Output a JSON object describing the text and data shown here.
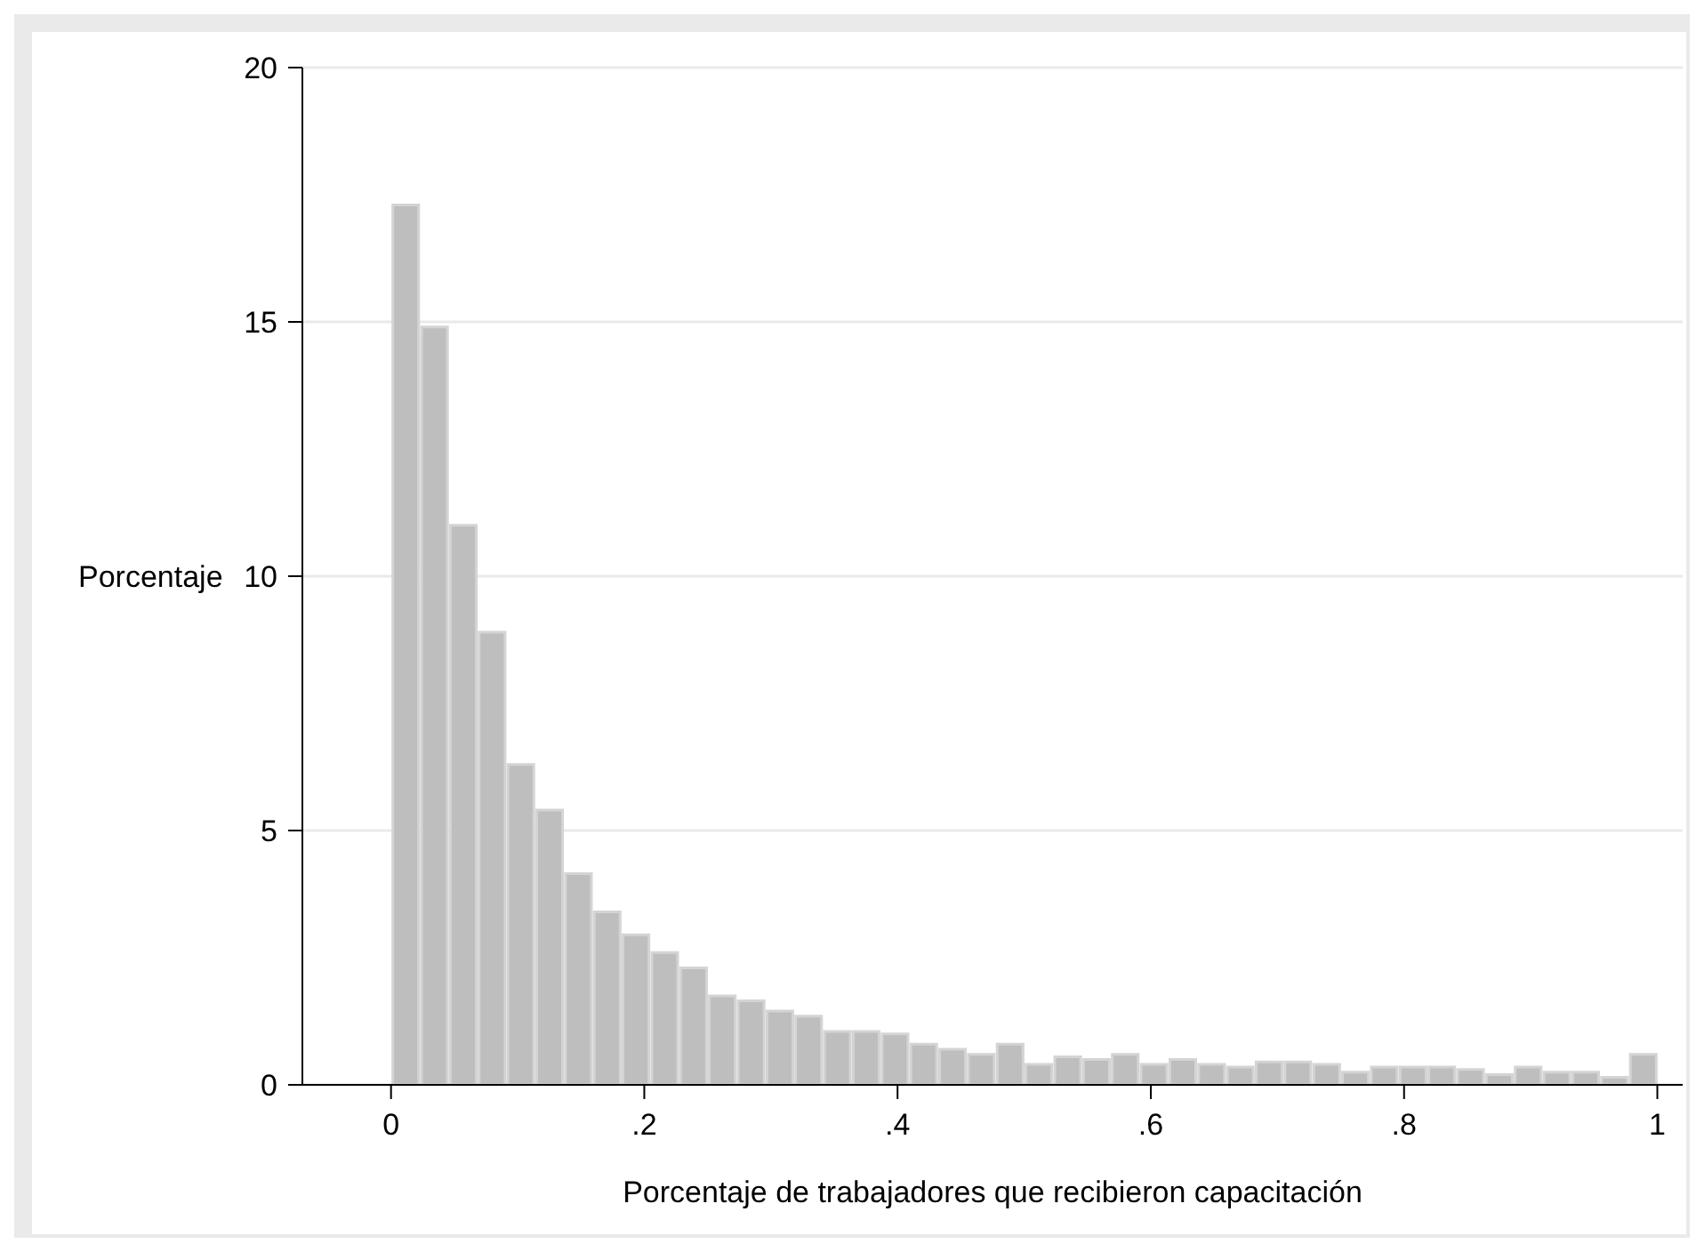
{
  "chart_data": {
    "type": "histogram",
    "xlabel": "Porcentaje de trabajadores que recibieron capacitación",
    "ylabel": "Porcentaje",
    "bins": [
      0,
      0.0227,
      0.0455,
      0.0682,
      0.0909,
      0.1136,
      0.1364,
      0.1591,
      0.1818,
      0.2045,
      0.2273,
      0.25,
      0.2727,
      0.2955,
      0.3182,
      0.3409,
      0.3636,
      0.3864,
      0.4091,
      0.4318,
      0.4545,
      0.4773,
      0.5,
      0.5227,
      0.5455,
      0.5682,
      0.5909,
      0.6136,
      0.6364,
      0.6591,
      0.6818,
      0.7045,
      0.7273,
      0.75,
      0.7727,
      0.7955,
      0.8182,
      0.8409,
      0.8636,
      0.8864,
      0.9091,
      0.9318,
      0.9545,
      0.9773,
      1
    ],
    "values": [
      17.3,
      14.9,
      11,
      8.9,
      6.3,
      5.4,
      4.15,
      3.4,
      2.95,
      2.6,
      2.3,
      1.75,
      1.65,
      1.45,
      1.35,
      1.05,
      1.05,
      1,
      0.8,
      0.7,
      0.6,
      0.8,
      0.4,
      0.55,
      0.5,
      0.6,
      0.4,
      0.5,
      0.4,
      0.35,
      0.45,
      0.45,
      0.4,
      0.25,
      0.35,
      0.35,
      0.35,
      0.3,
      0.2,
      0.35,
      0.25,
      0.25,
      0.15,
      0.6
    ],
    "color": "#bebebe",
    "xlim": [
      -0.07,
      1.02
    ],
    "xticks": [
      {
        "value": 0,
        "label": "0"
      },
      {
        "value": 0.2,
        "label": ".2"
      },
      {
        "value": 0.4,
        "label": ".4"
      },
      {
        "value": 0.6,
        "label": ".6"
      },
      {
        "value": 0.8,
        "label": ".8"
      },
      {
        "value": 1,
        "label": "1"
      }
    ],
    "ylim": [
      0,
      20
    ],
    "yticks": [
      0,
      5,
      10,
      15,
      20
    ],
    "grid": "y",
    "legend": false
  }
}
